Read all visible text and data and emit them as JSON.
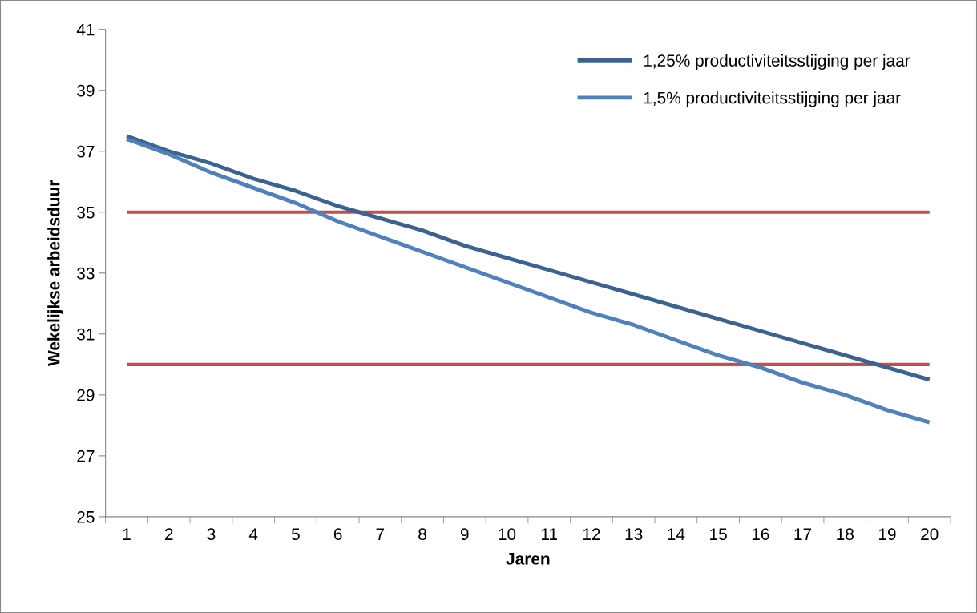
{
  "chart_data": {
    "type": "line",
    "xlabel": "Jaren",
    "ylabel": "Wekelijkse arbeidsduur",
    "categories": [
      "1",
      "2",
      "3",
      "4",
      "5",
      "6",
      "7",
      "8",
      "9",
      "10",
      "11",
      "12",
      "13",
      "14",
      "15",
      "16",
      "17",
      "18",
      "19",
      "20"
    ],
    "series": [
      {
        "name": "1,25% productiviteitsstijging per jaar",
        "color": "#3b6290",
        "values": [
          37.5,
          37.0,
          36.6,
          36.1,
          35.7,
          35.2,
          34.8,
          34.4,
          33.9,
          33.5,
          33.1,
          32.7,
          32.3,
          31.9,
          31.5,
          31.1,
          30.7,
          30.3,
          29.9,
          29.5
        ]
      },
      {
        "name": "1,5% productiviteitsstijging per jaar",
        "color": "#4f81bd",
        "values": [
          37.4,
          36.9,
          36.3,
          35.8,
          35.3,
          34.7,
          34.2,
          33.7,
          33.2,
          32.7,
          32.2,
          31.7,
          31.3,
          30.8,
          30.3,
          29.9,
          29.4,
          29.0,
          28.5,
          28.1
        ]
      }
    ],
    "ylim": [
      25,
      41
    ],
    "yticks": [
      25,
      27,
      29,
      31,
      33,
      35,
      37,
      39,
      41
    ],
    "ref_lines": [
      {
        "axis": "y",
        "value": 35,
        "color": "#c0504d"
      },
      {
        "axis": "y",
        "value": 30,
        "color": "#c0504d"
      }
    ],
    "grid": false,
    "legend": "top right",
    "marker": "none",
    "line_style": "solid"
  }
}
